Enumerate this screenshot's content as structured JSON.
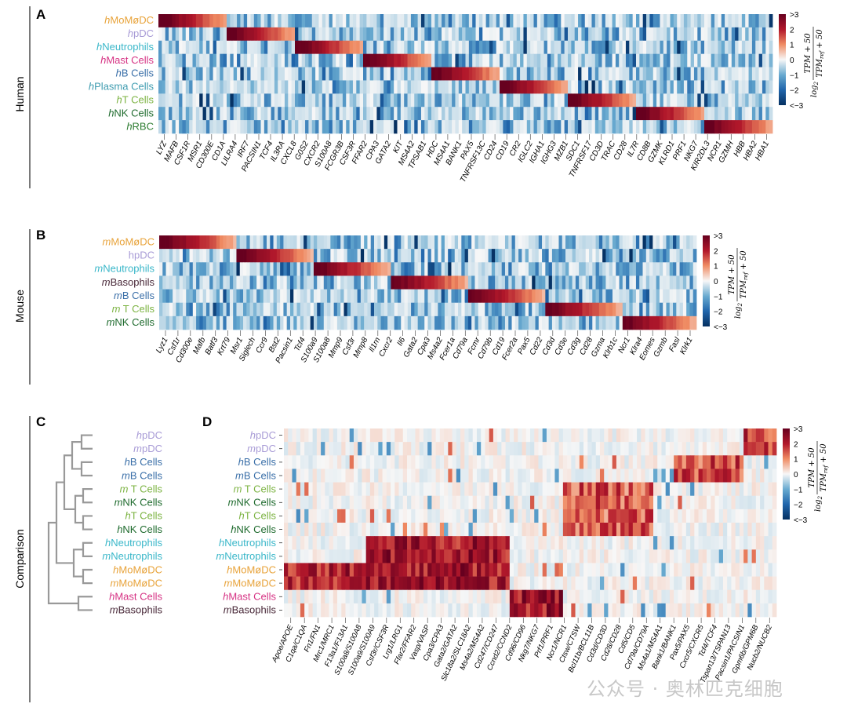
{
  "colorbar": {
    "ticks": [
      ">3",
      "2",
      "1",
      "0",
      "−1",
      "−2",
      "<−3"
    ],
    "title_num": "TPM + 50",
    "title_den": "TPM",
    "log_prefix": "log",
    "log_sub": "2",
    "ref_sub": "ref",
    "den_plus": "+ 50"
  },
  "colors": {
    "hMoMoDC": "#e8a33a",
    "hpDC": "#a89bd6",
    "hNeutrophils": "#3ab7c9",
    "hMast": "#d63384",
    "hB": "#3a6fa8",
    "hPlasma": "#3f9cb0",
    "hT": "#7cb342",
    "hNK": "#1f6b2e",
    "hRBC": "#2e7d32",
    "mBasophils": "#4a2a3a",
    "mNK": "#1f6b2e",
    "mT": "#7cb342",
    "mB": "#3a6fa8",
    "mpDC": "#a89bd6",
    "mNeutrophils": "#3ab7c9",
    "mMoMoDC": "#e8a33a",
    "dark": "#222222"
  },
  "panelA": {
    "letter": "A",
    "side_label": "Human",
    "rows": [
      {
        "prefix": "h",
        "name": "MoMøDC",
        "color": "#e8a33a"
      },
      {
        "prefix": "h",
        "name": "pDC",
        "color": "#a89bd6"
      },
      {
        "prefix": "h",
        "name": "Neutrophils",
        "color": "#3ab7c9"
      },
      {
        "prefix": "h",
        "name": "Mast Cells",
        "color": "#d63384"
      },
      {
        "prefix": "h",
        "name": "B Cells",
        "color": "#3a6fa8"
      },
      {
        "prefix": "h",
        "name": "Plasma Cells",
        "color": "#3f9cb0"
      },
      {
        "prefix": "h",
        "name": "T Cells",
        "color": "#7cb342"
      },
      {
        "prefix": "h",
        "name": "NK Cells",
        "color": "#1f6b2e"
      },
      {
        "prefix": "h",
        "name": "RBC",
        "color": "#2e7d32"
      }
    ],
    "genes": [
      "LYZ",
      "MAFB",
      "CSF1R",
      "MSR1",
      "CD300E",
      "CD1A",
      "LILRA4",
      "IRF7",
      "PACSIN1",
      "TCF4",
      "IL3RA",
      "CXCL8",
      "G0S2",
      "CXCR2",
      "S100A8",
      "FCGR3B",
      "CSF3R",
      "FFAR2",
      "CPA3",
      "GATA2",
      "KIT",
      "MS4A2",
      "TPSAB1",
      "HDC",
      "MS4A1",
      "BANK1",
      "PAX5",
      "TNFRSF13C",
      "CD24",
      "CD19",
      "CR2",
      "IGLC2",
      "IGHA1",
      "IGHG3",
      "MZB1",
      "SDC1",
      "TNFRSF17",
      "CD3D",
      "TRAC",
      "CD28",
      "IL7R",
      "CD8B",
      "GZMK",
      "KLRD1",
      "PRF1",
      "NKG7",
      "KIR2DL3",
      "NCR1",
      "GZMH",
      "HBB",
      "HBA2",
      "HBA1"
    ]
  },
  "panelB": {
    "letter": "B",
    "side_label": "Mouse",
    "rows": [
      {
        "prefix": "m",
        "name": "MoMøDC",
        "color": "#e8a33a"
      },
      {
        "prefix": "",
        "name": "hpDC",
        "color": "#a89bd6"
      },
      {
        "prefix": "m",
        "name": "Neutrophils",
        "color": "#3ab7c9"
      },
      {
        "prefix": "m",
        "name": "Basophils",
        "color": "#4a2a3a"
      },
      {
        "prefix": "m",
        "name": "B Cells",
        "color": "#3a6fa8"
      },
      {
        "prefix": "m",
        "name": " T Cells",
        "color": "#7cb342"
      },
      {
        "prefix": "m",
        "name": "NK Cells",
        "color": "#1f6b2e"
      }
    ],
    "genes": [
      "Lyz1",
      "Csf1r",
      "Cd300e",
      "Mafb",
      "Batf3",
      "Krt79",
      "Msr1",
      "Siglech",
      "Ccr9",
      "Bst2",
      "Pacsin1",
      "Tcf4",
      "S100a9",
      "S100a8",
      "Mmp9",
      "Csf3r",
      "Mmp8",
      "Il1rn",
      "Cxcr2",
      "Il6",
      "Gata2",
      "Cpa3",
      "Ms4a2",
      "Fcer1a",
      "Cd79a",
      "Fcmr",
      "Cd79b",
      "Cd19",
      "Fcer2a",
      "Pax5",
      "Cd22",
      "Cd3d",
      "Cd3e",
      "Cd3g",
      "Cd28",
      "Gzma",
      "Klrb1c",
      "Ncr1",
      "Klra4",
      "Eomes",
      "Gzmb",
      "Fasl",
      "Klrk1"
    ]
  },
  "panelC": {
    "letter": "C",
    "side_label": "Comparison"
  },
  "panelD": {
    "letter": "D",
    "rows": [
      {
        "prefix": "h",
        "name": "pDC",
        "color": "#a89bd6"
      },
      {
        "prefix": "m",
        "name": "pDC",
        "color": "#a89bd6"
      },
      {
        "prefix": "h",
        "name": "B Cells",
        "color": "#3a6fa8"
      },
      {
        "prefix": "m",
        "name": "B Cells",
        "color": "#3a6fa8"
      },
      {
        "prefix": "m",
        "name": " T Cells",
        "color": "#7cb342"
      },
      {
        "prefix": "m",
        "name": "NK Cells",
        "color": "#1f6b2e"
      },
      {
        "prefix": "h",
        "name": "T Cells",
        "color": "#7cb342"
      },
      {
        "prefix": "h",
        "name": "NK Cells",
        "color": "#1f6b2e"
      },
      {
        "prefix": "h",
        "name": "Neutrophils",
        "color": "#3ab7c9"
      },
      {
        "prefix": "m",
        "name": "Neutrophils",
        "color": "#3ab7c9"
      },
      {
        "prefix": "h",
        "name": "MoMøDC",
        "color": "#e8a33a"
      },
      {
        "prefix": "m",
        "name": "MoMøDC",
        "color": "#e8a33a"
      },
      {
        "prefix": "h",
        "name": "Mast Cells",
        "color": "#d63384"
      },
      {
        "prefix": "m",
        "name": "Basophils",
        "color": "#4a2a3a"
      }
    ],
    "genes": [
      "Apoe/APOE",
      "C1qa/C1QA",
      "Fn1/FN1",
      "Mrc1/MRC1",
      "F13a1/F13A1",
      "S100a8/S100A8",
      "S100a9/S100A9",
      "Csf3r/CSF3R",
      "Lrg1/LRG1",
      "Ffar2/FFAR2",
      "Vasp/VASP",
      "Cpa3/CPA3",
      "Gata2/GATA2",
      "Slc18a2/SLC18A2",
      "Ms4a2/MS4A2",
      "Cd247/CD247",
      "Ccnd2/CCND2",
      "Cd96/CD96",
      "Nkg7/NKG7",
      "Prf1/PRF1",
      "Ncr1/NCR1",
      "Ctsw/CTSW",
      "Bcl11b/BCL11B",
      "Cd3d/CD3D",
      "Cd28/CD28",
      "Cd5/CD5",
      "Cd79a/CD79A",
      "Ms4a1/MS4A1",
      "Bank1/BANK1",
      "Pax5/PAX5",
      "Cxcr5/CXCR5",
      "Tcf4/TCF4",
      "Tspan13/TSPAN13",
      "Pacsin1/PACSIN1",
      "Gpm6b/GPM6B",
      "Nucb2/NUCB2"
    ]
  },
  "watermark": "公众号 · 奥林匹克细胞"
}
